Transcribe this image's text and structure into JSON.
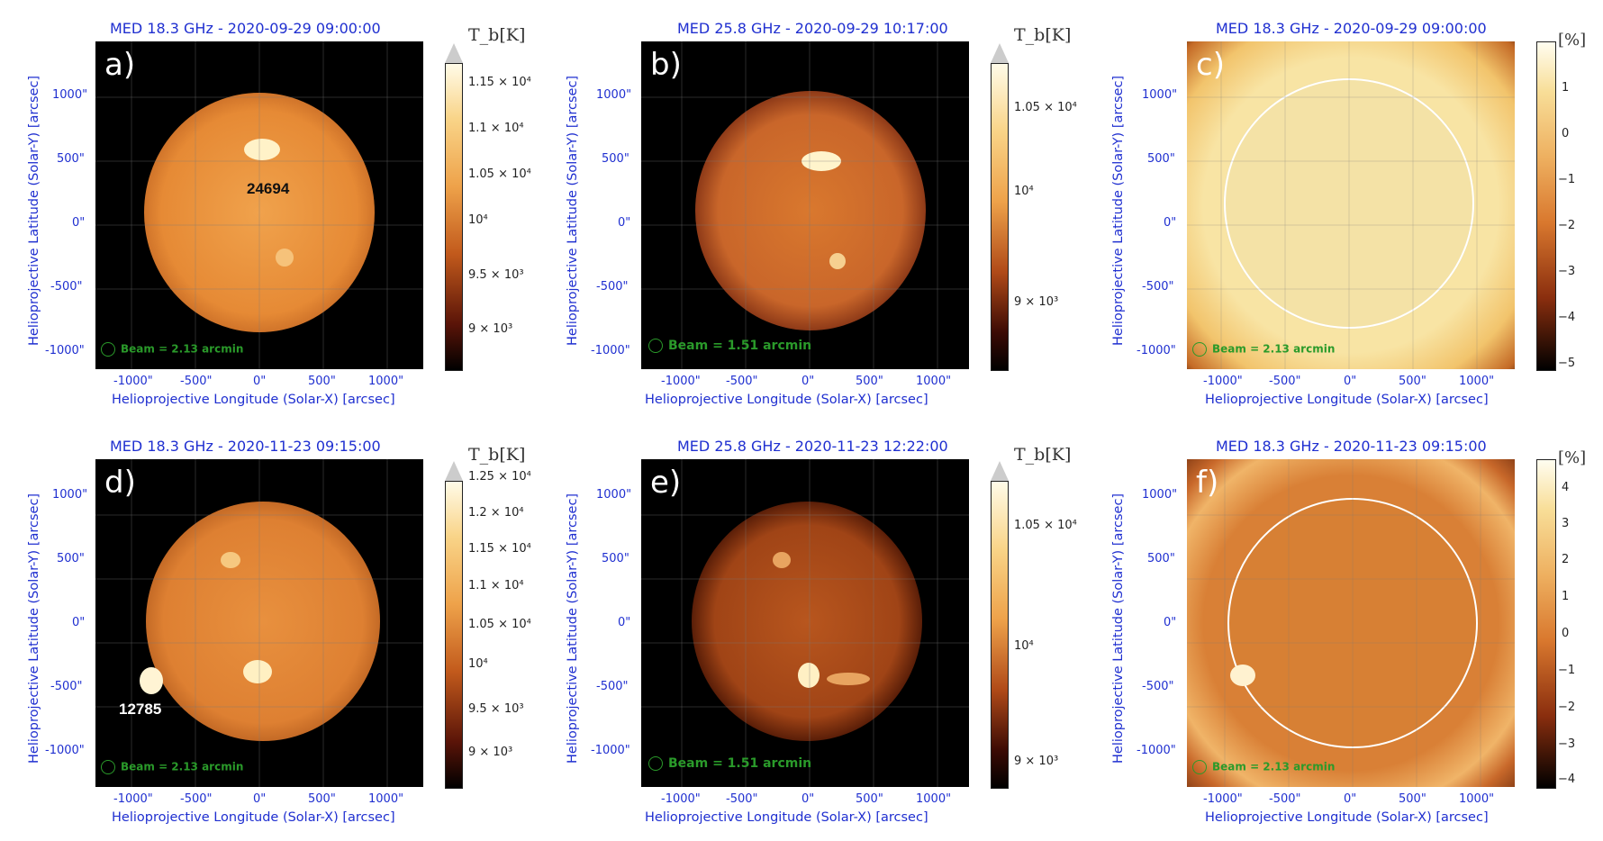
{
  "panels": [
    {
      "id": "a",
      "title": "MED 18.3 GHz - 2020-09-29 09:00:00",
      "letter": "a)",
      "beam": "Beam = 2.13 arcmin",
      "ar": "24694",
      "cbar_unit": "T_b[K]",
      "cbar_ticks": [
        "1.15 × 10⁴",
        "1.1 × 10⁴",
        "1.05 × 10⁴",
        "10⁴",
        "9.5 × 10³",
        "9 × 10³"
      ],
      "xlabel": "Helioprojective Longitude (Solar-X) [arcsec]",
      "ylabel": "Helioprojective Latitude (Solar-Y) [arcsec]"
    },
    {
      "id": "b",
      "title": "MED 25.8 GHz - 2020-09-29 10:17:00",
      "letter": "b)",
      "beam": "Beam = 1.51 arcmin",
      "cbar_unit": "T_b[K]",
      "cbar_ticks": [
        "1.05 × 10⁴",
        "10⁴",
        "9 × 10³"
      ],
      "xlabel": "Helioprojective Longitude (Solar-X) [arcsec]",
      "ylabel": "Helioprojective Latitude (Solar-Y) [arcsec]"
    },
    {
      "id": "c",
      "title": "MED 18.3 GHz - 2020-09-29 09:00:00",
      "letter": "c)",
      "beam": "Beam = 2.13 arcmin",
      "cbar_unit": "[%]",
      "cbar_ticks": [
        "1",
        "0",
        "−1",
        "−2",
        "−3",
        "−4",
        "−5"
      ],
      "xlabel": "Helioprojective Longitude (Solar-X) [arcsec]",
      "ylabel": "Helioprojective Latitude (Solar-Y) [arcsec]"
    },
    {
      "id": "d",
      "title": "MED 18.3 GHz - 2020-11-23 09:15:00",
      "letter": "d)",
      "beam": "Beam = 2.13 arcmin",
      "ar": "12785",
      "cbar_unit": "T_b[K]",
      "cbar_ticks": [
        "1.25 × 10⁴",
        "1.2 × 10⁴",
        "1.15 × 10⁴",
        "1.1 × 10⁴",
        "1.05 × 10⁴",
        "10⁴",
        "9.5 × 10³",
        "9 × 10³"
      ],
      "xlabel": "Helioprojective Longitude (Solar-X) [arcsec]",
      "ylabel": "Helioprojective Latitude (Solar-Y) [arcsec]"
    },
    {
      "id": "e",
      "title": "MED 25.8 GHz - 2020-11-23 12:22:00",
      "letter": "e)",
      "beam": "Beam = 1.51 arcmin",
      "cbar_unit": "T_b[K]",
      "cbar_ticks": [
        "1.05 × 10⁴",
        "10⁴",
        "9 × 10³"
      ],
      "xlabel": "Helioprojective Longitude (Solar-X) [arcsec]",
      "ylabel": "Helioprojective Latitude (Solar-Y) [arcsec]"
    },
    {
      "id": "f",
      "title": "MED 18.3 GHz - 2020-11-23 09:15:00",
      "letter": "f)",
      "beam": "Beam = 2.13 arcmin",
      "cbar_unit": "[%]",
      "cbar_ticks": [
        "4",
        "3",
        "2",
        "1",
        "0",
        "−1",
        "−2",
        "−3",
        "−4"
      ],
      "xlabel": "Helioprojective Longitude (Solar-X) [arcsec]",
      "ylabel": "Helioprojective Latitude (Solar-Y) [arcsec]"
    }
  ],
  "xticks": [
    "-1000\"",
    "-500\"",
    "0\"",
    "500\"",
    "1000\""
  ],
  "yticks": [
    "1000\"",
    "500\"",
    "0\"",
    "-500\"",
    "-1000\""
  ],
  "colors": {
    "axis": "#1f2fd0",
    "beam": "#2a9a2a"
  }
}
